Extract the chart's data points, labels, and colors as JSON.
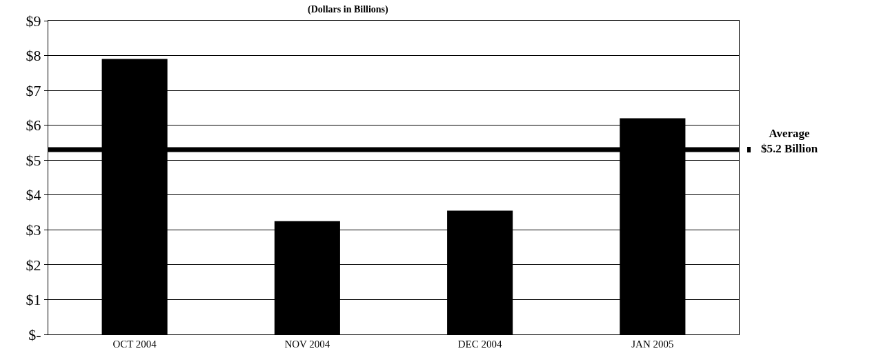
{
  "chart_data": {
    "type": "bar",
    "title": "(Dollars in Billions)",
    "categories": [
      "OCT 2004",
      "NOV 2004",
      "DEC 2004",
      "JAN 2005"
    ],
    "values": [
      7.9,
      3.25,
      3.55,
      6.2
    ],
    "color": "#000000",
    "ylim": [
      0,
      9
    ],
    "yticks": [
      {
        "value": 0,
        "label": "$-"
      },
      {
        "value": 1,
        "label": "$1"
      },
      {
        "value": 2,
        "label": "$2"
      },
      {
        "value": 3,
        "label": "$3"
      },
      {
        "value": 4,
        "label": "$4"
      },
      {
        "value": 5,
        "label": "$5"
      },
      {
        "value": 6,
        "label": "$6"
      },
      {
        "value": 7,
        "label": "$7"
      },
      {
        "value": 8,
        "label": "$8"
      },
      {
        "value": 9,
        "label": "$9"
      }
    ],
    "grid": "y",
    "ref_lines": [
      {
        "axis": "y",
        "value": 5.3,
        "label": "Average\n$5.2 Billion",
        "color": "#000000"
      }
    ]
  }
}
